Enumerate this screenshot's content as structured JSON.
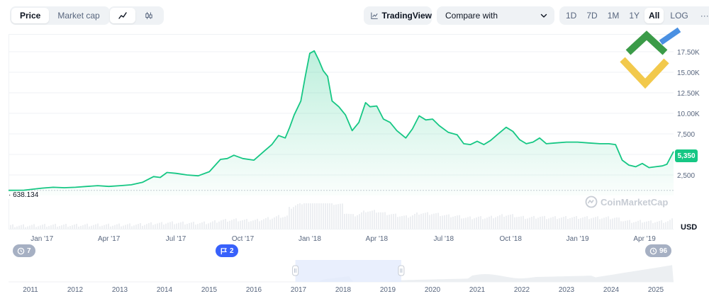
{
  "toolbar": {
    "type_tabs": [
      {
        "label": "Price",
        "active": true
      },
      {
        "label": "Market cap",
        "active": false
      }
    ],
    "chart_mode_icons": [
      "line-chart-icon",
      "candlestick-icon"
    ],
    "tradingview_label": "TradingView",
    "compare_label": "Compare with",
    "ranges": [
      {
        "label": "1D",
        "active": false
      },
      {
        "label": "7D",
        "active": false
      },
      {
        "label": "1M",
        "active": false
      },
      {
        "label": "1Y",
        "active": false
      },
      {
        "label": "All",
        "active": true
      }
    ],
    "log_label": "LOG",
    "more_label": "···"
  },
  "watermark": "CoinMarketCap",
  "current_price_label": "5,350",
  "min_price_label": "638.134",
  "currency_label": "USD",
  "events": {
    "left_count": "7",
    "mid_count": "2",
    "right_count": "96"
  },
  "colors": {
    "line": "#16c784",
    "accent": "#3861fb",
    "badge_gray": "#a6b0c3",
    "logo_green": "#3b9b48",
    "logo_yellow": "#f2c94c",
    "logo_blue": "#4a90e2"
  },
  "chart_data": {
    "type": "area",
    "y_unit": "USD",
    "y_ticks": [
      2500,
      5000,
      7500,
      10000,
      12500,
      15000,
      17500
    ],
    "y_tick_labels": [
      "2,500",
      "5,000",
      "7,500",
      "10.00K",
      "12.50K",
      "15.00K",
      "17.50K"
    ],
    "ylim": [
      0,
      20000
    ],
    "x_tick_labels": [
      "Jan '17",
      "Apr '17",
      "Jul '17",
      "Oct '17",
      "Jan '18",
      "Apr '18",
      "Jul '18",
      "Oct '18",
      "Jan '19",
      "Apr '19"
    ],
    "x_tick_months": [
      0,
      3,
      6,
      9,
      12,
      15,
      18,
      21,
      24,
      27
    ],
    "x_range_months": [
      -1.5,
      28.3
    ],
    "series": [
      {
        "points": [
          [
            -1.5,
            630
          ],
          [
            -0.8,
            650
          ],
          [
            0,
            900
          ],
          [
            0.5,
            1000
          ],
          [
            1,
            950
          ],
          [
            1.5,
            1000
          ],
          [
            2,
            1100
          ],
          [
            2.5,
            1200
          ],
          [
            3,
            1100
          ],
          [
            3.5,
            1200
          ],
          [
            4,
            1300
          ],
          [
            4.5,
            1600
          ],
          [
            5,
            2300
          ],
          [
            5.3,
            2200
          ],
          [
            5.6,
            2800
          ],
          [
            6,
            2700
          ],
          [
            6.5,
            2500
          ],
          [
            7,
            2400
          ],
          [
            7.5,
            2900
          ],
          [
            8,
            4400
          ],
          [
            8.3,
            4500
          ],
          [
            8.6,
            4900
          ],
          [
            9,
            4500
          ],
          [
            9.5,
            4300
          ],
          [
            10,
            5500
          ],
          [
            10.3,
            6200
          ],
          [
            10.6,
            7300
          ],
          [
            10.9,
            7000
          ],
          [
            11.1,
            8300
          ],
          [
            11.3,
            9800
          ],
          [
            11.6,
            11500
          ],
          [
            11.8,
            14500
          ],
          [
            12.0,
            17300
          ],
          [
            12.2,
            17600
          ],
          [
            12.4,
            16500
          ],
          [
            12.6,
            15200
          ],
          [
            12.8,
            14500
          ],
          [
            13.0,
            11500
          ],
          [
            13.3,
            10800
          ],
          [
            13.6,
            9800
          ],
          [
            13.9,
            7900
          ],
          [
            14.2,
            8900
          ],
          [
            14.5,
            11300
          ],
          [
            14.7,
            10800
          ],
          [
            15.0,
            10900
          ],
          [
            15.3,
            9300
          ],
          [
            15.6,
            8900
          ],
          [
            15.9,
            7900
          ],
          [
            16.3,
            7000
          ],
          [
            16.6,
            8100
          ],
          [
            16.9,
            9700
          ],
          [
            17.2,
            9200
          ],
          [
            17.5,
            9300
          ],
          [
            17.8,
            8500
          ],
          [
            18.2,
            7700
          ],
          [
            18.6,
            7400
          ],
          [
            18.9,
            6300
          ],
          [
            19.2,
            6200
          ],
          [
            19.5,
            6600
          ],
          [
            19.8,
            6200
          ],
          [
            20.1,
            6700
          ],
          [
            20.4,
            7400
          ],
          [
            20.8,
            8300
          ],
          [
            21.1,
            7800
          ],
          [
            21.4,
            6800
          ],
          [
            21.7,
            6300
          ],
          [
            22.0,
            6500
          ],
          [
            22.3,
            7000
          ],
          [
            22.6,
            6300
          ],
          [
            23.0,
            6400
          ],
          [
            23.5,
            6500
          ],
          [
            24.0,
            6500
          ],
          [
            24.5,
            6400
          ],
          [
            25.0,
            6300
          ],
          [
            25.4,
            6300
          ],
          [
            25.7,
            6200
          ],
          [
            26.0,
            4300
          ],
          [
            26.3,
            3700
          ],
          [
            26.6,
            3500
          ],
          [
            26.9,
            3900
          ],
          [
            27.2,
            3400
          ],
          [
            27.5,
            3500
          ],
          [
            27.8,
            3600
          ],
          [
            28.0,
            3800
          ],
          [
            28.3,
            5350
          ]
        ]
      }
    ],
    "navigator": {
      "x_tick_labels": [
        "2011",
        "2012",
        "2013",
        "2014",
        "2015",
        "2016",
        "2017",
        "2018",
        "2019",
        "2020",
        "2021",
        "2022",
        "2023",
        "2024",
        "2025"
      ],
      "selected_years": [
        2016.93,
        2019.3
      ]
    }
  }
}
